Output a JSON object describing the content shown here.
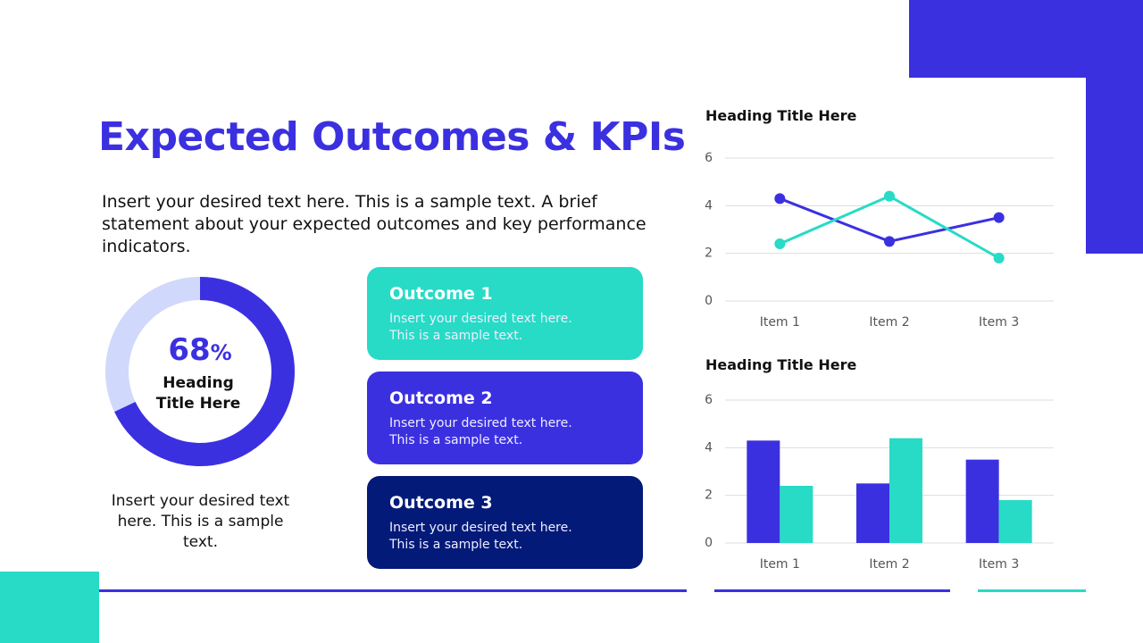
{
  "title": "Expected Outcomes & KPIs",
  "intro": "Insert your desired text here. This is a sample text. A brief statement about your expected outcomes and key performance indicators.",
  "donut_caption": "Insert your desired text here. This is a sample text.",
  "outcomes": [
    {
      "title": "Outcome 1",
      "text": "Insert your desired text here. This is a sample text.",
      "color": "#27dbc6"
    },
    {
      "title": "Outcome 2",
      "text": "Insert your desired text here. This is a sample text.",
      "color": "#3b30e0"
    },
    {
      "title": "Outcome 3",
      "text": "Insert your desired text here. This is a sample text.",
      "color": "#031a78"
    }
  ],
  "chart_data": [
    {
      "type": "donut",
      "title": "Heading Title Here",
      "values": [
        68
      ],
      "unit": "%",
      "color": "#3b30e0",
      "track_color": "#d0d8fb"
    },
    {
      "type": "line",
      "title": "Heading Title Here",
      "categories": [
        "Item 1",
        "Item 2",
        "Item 3"
      ],
      "series": [
        {
          "color": "#3b30e0",
          "values": [
            4.3,
            2.5,
            3.5
          ]
        },
        {
          "color": "#27dbc6",
          "values": [
            2.4,
            4.4,
            1.8
          ]
        }
      ],
      "ylim": [
        0,
        6
      ],
      "yticks": [
        0,
        2,
        4,
        6
      ],
      "grid": true
    },
    {
      "type": "bar",
      "title": "Heading Title Here",
      "categories": [
        "Item 1",
        "Item 2",
        "Item 3"
      ],
      "series": [
        {
          "color": "#3b30e0",
          "values": [
            4.3,
            2.5,
            3.5
          ]
        },
        {
          "color": "#27dbc6",
          "values": [
            2.4,
            4.4,
            1.8
          ]
        }
      ],
      "ylim": [
        0,
        6
      ],
      "yticks": [
        0,
        2,
        4,
        6
      ],
      "grid": true
    }
  ]
}
